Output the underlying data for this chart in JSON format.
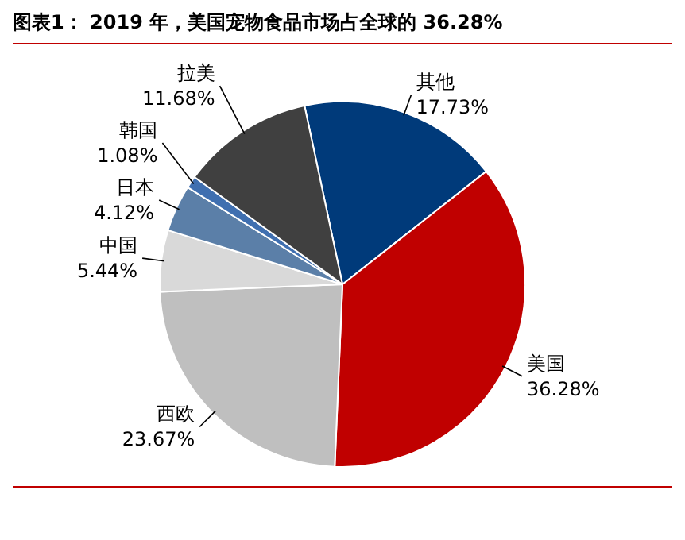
{
  "chart_data": {
    "type": "pie",
    "title": "图表1： 2019 年，美国宠物食品市场占全球的 36.28%",
    "categories": [
      "其他",
      "美国",
      "西欧",
      "中国",
      "日本",
      "韩国",
      "拉美"
    ],
    "values": [
      17.73,
      36.28,
      23.67,
      5.44,
      4.12,
      1.08,
      11.68
    ],
    "value_labels": [
      "17.73%",
      "36.28%",
      "23.67%",
      "5.44%",
      "4.12%",
      "1.08%",
      "11.68%"
    ],
    "colors": [
      "#003a7a",
      "#c00000",
      "#bfbfbf",
      "#d9d9d9",
      "#5b7fa8",
      "#3f6fb0",
      "#404040"
    ],
    "legend": false
  }
}
